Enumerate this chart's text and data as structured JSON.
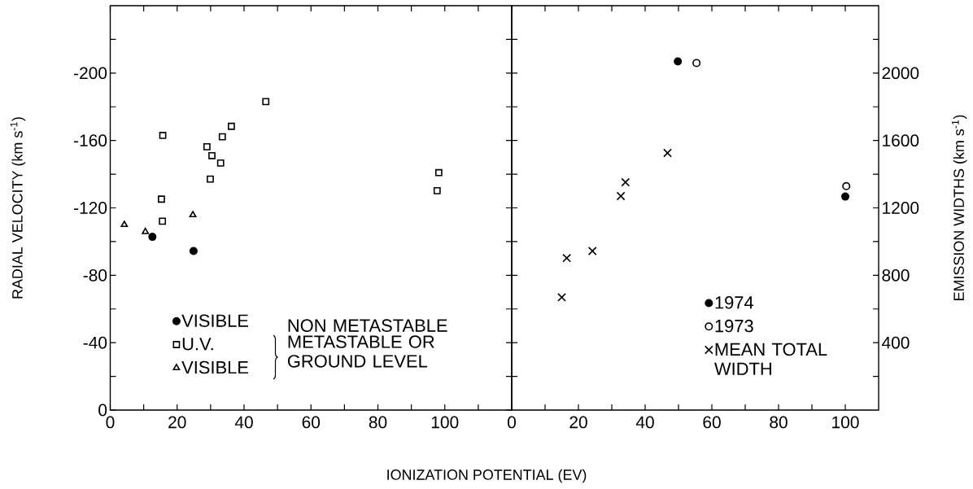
{
  "chart_data": [
    {
      "type": "scatter",
      "xlabel": "IONIZATION POTENTIAL (EV)",
      "ylabel": "RADIAL VELOCITY (km s$^{-1}$)",
      "xlim": [
        0,
        120
      ],
      "ylim": [
        0,
        -240
      ],
      "xticks": [
        0,
        {
          "value": 10,
          "label": null
        },
        20,
        {
          "value": 30,
          "label": null
        },
        40,
        {
          "value": 50,
          "label": null
        },
        60,
        {
          "value": 70,
          "label": null
        },
        80,
        {
          "value": 90,
          "label": null
        },
        100,
        {
          "value": 110,
          "label": null
        }
      ],
      "yticks": [
        0,
        {
          "value": -20,
          "label": null
        },
        -40,
        {
          "value": -60,
          "label": null
        },
        -80,
        {
          "value": -100,
          "label": null
        },
        -120,
        {
          "value": -140,
          "label": null
        },
        -160,
        {
          "value": -180,
          "label": null
        },
        -200,
        {
          "value": -220,
          "label": null
        }
      ],
      "legend": "bottom left",
      "annotations": [
        "NON METASTABLE",
        "METASTABLE OR GROUND LEVEL"
      ],
      "series": [
        {
          "name": "VISIBLE",
          "marker": "circle",
          "color": "#000000",
          "x": [
            12.6,
            24.9
          ],
          "values": [
            -102.8,
            -94.4
          ]
        },
        {
          "name": "U.V.",
          "marker": "square-open",
          "color": "#000000",
          "x": [
            15.7,
            15.3,
            15.6,
            28.9,
            30.4,
            29.9,
            33.5,
            33.0,
            36.2,
            46.5,
            98.2,
            97.7
          ],
          "values": [
            -163,
            -125.2,
            -112.1,
            -156.3,
            -151,
            -137.1,
            -162.2,
            -146.6,
            -168.4,
            -183.1,
            -140.9,
            -130.2
          ]
        },
        {
          "name": "VISIBLE",
          "marker": "triangle-open",
          "color": "#000000",
          "x": [
            4.2,
            10.5,
            24.7
          ],
          "values": [
            -110,
            -105.8,
            -115.8
          ]
        }
      ]
    },
    {
      "type": "scatter",
      "ylabel": "EMISSION WIDTHS (km s$^{-1}$)",
      "xlim": [
        0,
        110
      ],
      "ylim": [
        0,
        2400
      ],
      "xticks": [
        0,
        {
          "value": 10,
          "label": null
        },
        20,
        {
          "value": 30,
          "label": null
        },
        40,
        {
          "value": 50,
          "label": null
        },
        60,
        {
          "value": 70,
          "label": null
        },
        80,
        {
          "value": 90,
          "label": null
        },
        100
      ],
      "yticks": [
        {
          "value": 200,
          "label": null
        },
        400,
        {
          "value": 600,
          "label": null
        },
        800,
        {
          "value": 1000,
          "label": null
        },
        1200,
        {
          "value": 1400,
          "label": null
        },
        1600,
        {
          "value": 1800,
          "label": null
        },
        2000,
        {
          "value": 2200,
          "label": null
        }
      ],
      "legend": "bottom right",
      "series": [
        {
          "name": "1974",
          "marker": "circle",
          "color": "#000000",
          "x": [
            49.8,
            100
          ],
          "values": [
            2069,
            1267
          ]
        },
        {
          "name": "1973",
          "marker": "circle-open",
          "color": "#000000",
          "x": [
            55.4,
            100.3
          ],
          "values": [
            2060,
            1329
          ]
        },
        {
          "name": "MEAN TOTAL WIDTH",
          "marker": "cross",
          "color": "#000000",
          "x": [
            15.0,
            16.5,
            24.2,
            32.7,
            34.1,
            46.7
          ],
          "values": [
            669,
            902,
            944,
            1270,
            1352,
            1526
          ]
        }
      ]
    }
  ]
}
